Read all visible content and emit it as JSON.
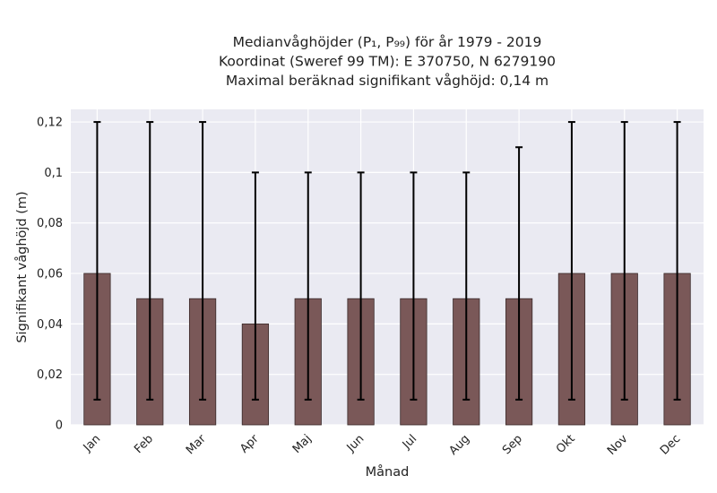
{
  "chart_data": {
    "type": "bar",
    "title_lines": [
      "Medianvåghöjder (P₁, P₉₉) för år 1979 - 2019",
      "Koordinat (Sweref 99 TM): E 370750, N 6279190",
      "Maximal beräknad signifikant våghöjd: 0,14 m"
    ],
    "xlabel": "Månad",
    "ylabel": "Signifikant våghöjd (m)",
    "categories": [
      "Jan",
      "Feb",
      "Mar",
      "Apr",
      "Maj",
      "Jun",
      "Jul",
      "Aug",
      "Sep",
      "Okt",
      "Nov",
      "Dec"
    ],
    "values": [
      0.06,
      0.05,
      0.05,
      0.04,
      0.05,
      0.05,
      0.05,
      0.05,
      0.05,
      0.06,
      0.06,
      0.06
    ],
    "error_low": [
      0.01,
      0.01,
      0.01,
      0.01,
      0.01,
      0.01,
      0.01,
      0.01,
      0.01,
      0.01,
      0.01,
      0.01
    ],
    "error_high": [
      0.12,
      0.12,
      0.12,
      0.1,
      0.1,
      0.1,
      0.1,
      0.1,
      0.11,
      0.12,
      0.12,
      0.12
    ],
    "ylim": [
      0,
      0.125
    ],
    "yticks": [
      0,
      0.02,
      0.04,
      0.06,
      0.08,
      0.1,
      0.12
    ],
    "ytick_labels": [
      "0",
      "0,02",
      "0,04",
      "0,06",
      "0,08",
      "0,1",
      "0,12"
    ],
    "grid": true,
    "colors": {
      "bar": "#7a5858",
      "bar_edge": "#3a2a2a",
      "error": "#000000",
      "background": "#eaeaf2",
      "grid": "#ffffff"
    }
  }
}
